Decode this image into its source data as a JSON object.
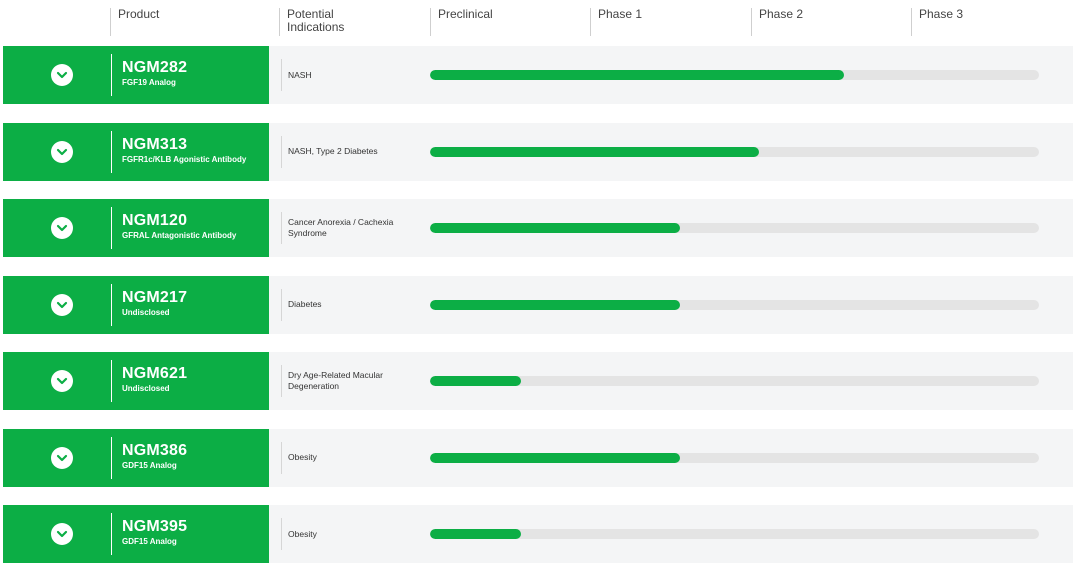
{
  "header": {
    "product": "Product",
    "indications": "Potential\nIndications",
    "preclinical": "Preclinical",
    "phase1": "Phase 1",
    "phase2": "Phase 2",
    "phase3": "Phase 3"
  },
  "colors": {
    "accent": "#0cae45",
    "row_bg": "#f4f5f6",
    "track": "#e4e4e4"
  },
  "expand_icon": "chevron-down-icon",
  "programs": [
    {
      "name": "NGM282",
      "subtitle": "FGF19 Analog",
      "indication": "NASH",
      "progress_fraction": 0.68
    },
    {
      "name": "NGM313",
      "subtitle": "FGFR1c/KLB Agonistic Antibody",
      "indication": "NASH, Type 2 Diabetes",
      "progress_fraction": 0.54
    },
    {
      "name": "NGM120",
      "subtitle": "GFRAL Antagonistic Antibody",
      "indication": "Cancer Anorexia / Cachexia Syndrome",
      "progress_fraction": 0.41
    },
    {
      "name": "NGM217",
      "subtitle": "Undisclosed",
      "indication": "Diabetes",
      "progress_fraction": 0.41
    },
    {
      "name": "NGM621",
      "subtitle": "Undisclosed",
      "indication": "Dry Age-Related Macular Degeneration",
      "progress_fraction": 0.15
    },
    {
      "name": "NGM386",
      "subtitle": "GDF15 Analog",
      "indication": "Obesity",
      "progress_fraction": 0.41
    },
    {
      "name": "NGM395",
      "subtitle": "GDF15 Analog",
      "indication": "Obesity",
      "progress_fraction": 0.15
    }
  ]
}
